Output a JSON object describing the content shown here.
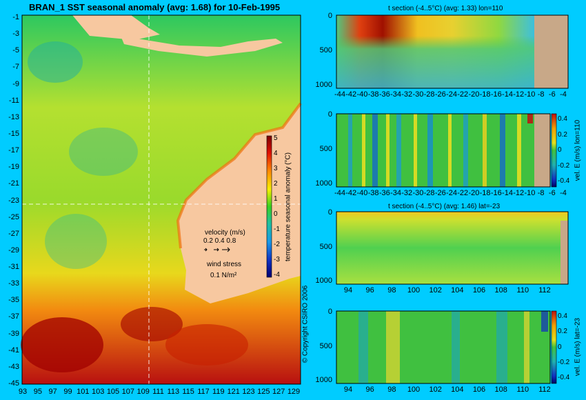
{
  "main_map": {
    "title": "BRAN_1 SST seasonal anomaly (avg: 1.68) for 10-Feb-1995",
    "lat_ticks": [
      "-1",
      "-3",
      "-5",
      "-7",
      "-9",
      "-11",
      "-13",
      "-15",
      "-17",
      "-19",
      "-21",
      "-23",
      "-25",
      "-27",
      "-29",
      "-31",
      "-33",
      "-35",
      "-37",
      "-39",
      "-41",
      "-43",
      "-45"
    ],
    "lon_ticks": [
      "93",
      "95",
      "97",
      "99",
      "101",
      "103",
      "105",
      "107",
      "109",
      "111",
      "113",
      "115",
      "117",
      "119",
      "121",
      "123",
      "125",
      "127",
      "129"
    ],
    "colorbar": {
      "ticks": [
        "5",
        "4",
        "3",
        "2",
        "1",
        "0",
        "-1",
        "-2",
        "-3",
        "-4"
      ],
      "label": "temperature seasonal anomaly (°C)"
    },
    "velocity_legend": {
      "title": "velocity (m/s)",
      "scale": "0.2 0.4 0.8"
    },
    "wind_legend": {
      "title": "wind stress",
      "value": "0.1 N/m²"
    },
    "copyright": "© Copyright CSIRO 2006",
    "section_lines": {
      "lon": "110",
      "lat": "-23"
    }
  },
  "panels": [
    {
      "title": "t section (-4..5°C) (avg: 1.33) lon=110",
      "y_ticks": [
        "0",
        "500",
        "1000"
      ],
      "x_ticks": [
        "-44",
        "-42",
        "-40",
        "-38",
        "-36",
        "-34",
        "-32",
        "-30",
        "-28",
        "-26",
        "-24",
        "-22",
        "-20",
        "-18",
        "-16",
        "-14",
        "-12",
        "-10",
        "-8",
        "-6",
        "-4"
      ],
      "colorbar": null
    },
    {
      "title": "",
      "y_ticks": [
        "0",
        "500",
        "1000"
      ],
      "x_ticks": [
        "-44",
        "-42",
        "-40",
        "-38",
        "-36",
        "-34",
        "-32",
        "-30",
        "-28",
        "-26",
        "-24",
        "-22",
        "-20",
        "-18",
        "-16",
        "-14",
        "-12",
        "-10",
        "-8",
        "-6",
        "-4"
      ],
      "colorbar": {
        "ticks": [
          "0.4",
          "0.2",
          "0",
          "-0.2",
          "-0.4"
        ],
        "label": "vel. E (m/s) lon=110"
      }
    },
    {
      "title": "t section (-4..5°C) (avg: 1.46) lat=-23",
      "y_ticks": [
        "0",
        "500",
        "1000"
      ],
      "x_ticks": [
        "94",
        "96",
        "98",
        "100",
        "102",
        "104",
        "106",
        "108",
        "110",
        "112"
      ],
      "colorbar": null
    },
    {
      "title": "",
      "y_ticks": [
        "0",
        "500",
        "1000"
      ],
      "x_ticks": [
        "94",
        "96",
        "98",
        "100",
        "102",
        "104",
        "106",
        "108",
        "110",
        "112"
      ],
      "colorbar": {
        "ticks": [
          "0.4",
          "0.2",
          "0",
          "-0.2",
          "-0.4"
        ],
        "label": "vel. E (m/s) lat=-23"
      }
    }
  ]
}
